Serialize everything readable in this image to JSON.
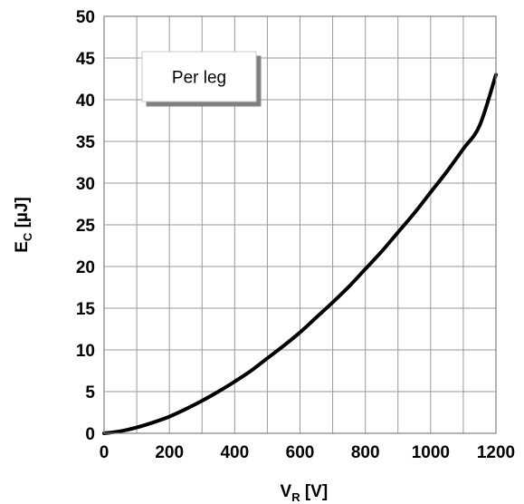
{
  "chart_data": {
    "type": "line",
    "title": "",
    "xlabel": {
      "main": "V",
      "sub": "R",
      "unit": " [V]"
    },
    "ylabel": {
      "main": "E",
      "sub": "C",
      "unit": " [µJ]"
    },
    "xlim": [
      0,
      1200
    ],
    "ylim": [
      0,
      50
    ],
    "xticks": [
      0,
      200,
      400,
      600,
      800,
      1000,
      1200
    ],
    "yticks": [
      0,
      5,
      10,
      15,
      20,
      25,
      30,
      35,
      40,
      45,
      50
    ],
    "grid": true,
    "minor_x_step": 100,
    "annotation": "Per leg",
    "series": [
      {
        "color": "#000000",
        "x": [
          0,
          50,
          100,
          150,
          200,
          250,
          300,
          350,
          400,
          450,
          500,
          550,
          600,
          650,
          700,
          750,
          800,
          850,
          900,
          950,
          1000,
          1050,
          1100,
          1150,
          1200
        ],
        "y": [
          0.0,
          0.25,
          0.7,
          1.3,
          2.0,
          2.9,
          3.9,
          5.0,
          6.2,
          7.5,
          9.0,
          10.5,
          12.1,
          13.9,
          15.7,
          17.6,
          19.7,
          21.8,
          24.1,
          26.4,
          28.9,
          31.4,
          34.1,
          36.9,
          43.0
        ]
      }
    ]
  }
}
